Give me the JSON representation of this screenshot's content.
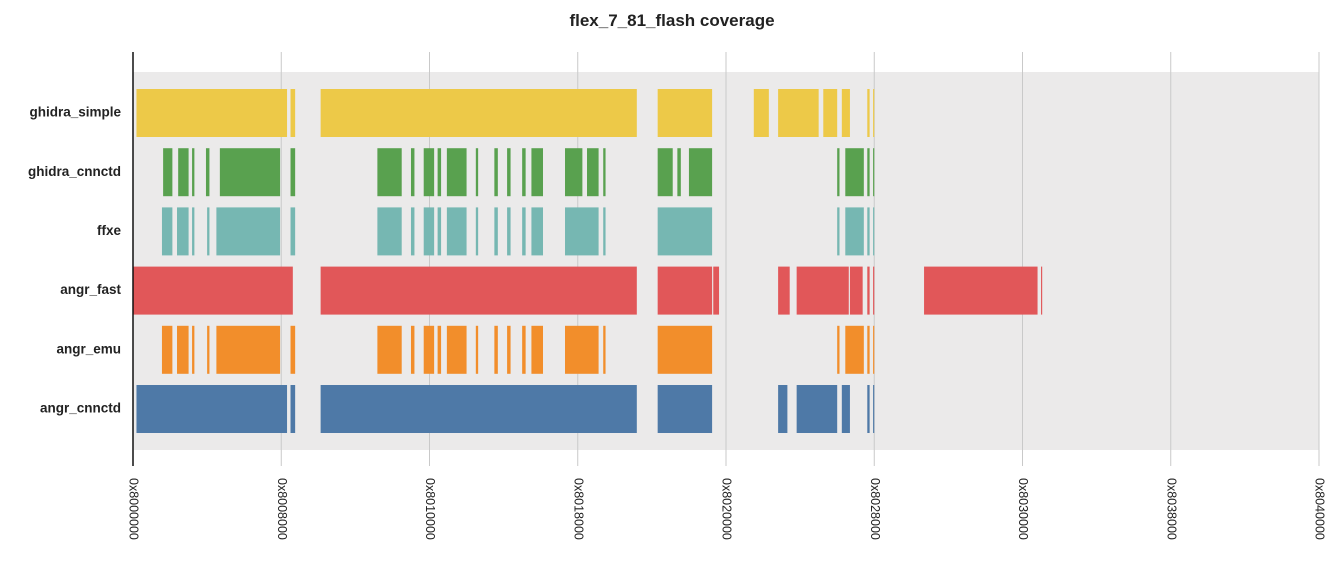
{
  "chart_data": {
    "type": "bar",
    "title": "flex_7_81_flash coverage",
    "xlabel": "",
    "ylabel": "",
    "xlim": [
      "0x8000000",
      "0x8040000"
    ],
    "xticks": [
      "0x8000000",
      "0x8008000",
      "0x8010000",
      "0x8018000",
      "0x8020000",
      "0x8028000",
      "0x8030000",
      "0x8038000",
      "0x8040000"
    ],
    "grid": "vertical",
    "legend": "none",
    "series": [
      {
        "name": "ghidra_simple",
        "color": "#edc948",
        "ranges": [
          [
            "0x8000300",
            "0x8008500"
          ],
          [
            "0x8008800",
            "0x8008C00"
          ],
          [
            "0x800A200",
            "0x801B300"
          ],
          [
            "0x801C500",
            "0x801F400"
          ],
          [
            "0x8021800",
            "0x8022500"
          ],
          [
            "0x8022D00",
            "0x8025000"
          ],
          [
            "0x8025400",
            "0x8026000"
          ],
          [
            "0x8026400",
            "0x8026B00"
          ],
          [
            "0x8027A00",
            "0x8027C00"
          ],
          [
            "0x8027F00",
            "0x8028000"
          ]
        ]
      },
      {
        "name": "ghidra_cnnctd",
        "color": "#59a14f",
        "ranges": [
          [
            "0x8001A00",
            "0x8002200"
          ],
          [
            "0x8002700",
            "0x8003000"
          ],
          [
            "0x8003300",
            "0x8003500"
          ],
          [
            "0x8003F00",
            "0x8004200"
          ],
          [
            "0x8004B00",
            "0x8007F00"
          ],
          [
            "0x8008800",
            "0x8008C00"
          ],
          [
            "0x800D300",
            "0x800E800"
          ],
          [
            "0x800F000",
            "0x800F300"
          ],
          [
            "0x800FB00",
            "0x8010400"
          ],
          [
            "0x8010700",
            "0x8010A00"
          ],
          [
            "0x8010F00",
            "0x8012000"
          ],
          [
            "0x8012800",
            "0x8012A00"
          ],
          [
            "0x8013800",
            "0x8013B00"
          ],
          [
            "0x8014300",
            "0x8014600"
          ],
          [
            "0x8015000",
            "0x8015300"
          ],
          [
            "0x8015800",
            "0x8016200"
          ],
          [
            "0x8017500",
            "0x8018400"
          ],
          [
            "0x8018800",
            "0x8019200"
          ],
          [
            "0x8019600",
            "0x8019800"
          ],
          [
            "0x801C500",
            "0x801D200"
          ],
          [
            "0x801D600",
            "0x801D900"
          ],
          [
            "0x801E000",
            "0x801F400"
          ],
          [
            "0x8026000",
            "0x8026200"
          ],
          [
            "0x8026700",
            "0x8027700"
          ],
          [
            "0x8027A00",
            "0x8027C00"
          ],
          [
            "0x8027F00",
            "0x8028000"
          ]
        ]
      },
      {
        "name": "ffxe",
        "color": "#76b7b2",
        "ranges": [
          [
            "0x8001900",
            "0x8002200"
          ],
          [
            "0x8002600",
            "0x8003000"
          ],
          [
            "0x8003300",
            "0x8003500"
          ],
          [
            "0x8004000",
            "0x8004200"
          ],
          [
            "0x8004800",
            "0x8007F00"
          ],
          [
            "0x8008800",
            "0x8008C00"
          ],
          [
            "0x800D300",
            "0x800E800"
          ],
          [
            "0x800F000",
            "0x800F300"
          ],
          [
            "0x800FB00",
            "0x8010400"
          ],
          [
            "0x8010700",
            "0x8010A00"
          ],
          [
            "0x8010F00",
            "0x8012000"
          ],
          [
            "0x8012800",
            "0x8012A00"
          ],
          [
            "0x8013800",
            "0x8013B00"
          ],
          [
            "0x8014300",
            "0x8014600"
          ],
          [
            "0x8015000",
            "0x8015300"
          ],
          [
            "0x8015800",
            "0x8016200"
          ],
          [
            "0x8017500",
            "0x8019200"
          ],
          [
            "0x8019600",
            "0x8019800"
          ],
          [
            "0x801C500",
            "0x801F400"
          ],
          [
            "0x8026000",
            "0x8026200"
          ],
          [
            "0x8026700",
            "0x8027700"
          ],
          [
            "0x8027A00",
            "0x8027C00"
          ],
          [
            "0x8027F00",
            "0x8028000"
          ]
        ]
      },
      {
        "name": "angr_fast",
        "color": "#e15759",
        "ranges": [
          [
            "0x8000000",
            "0x8008A00"
          ],
          [
            "0x800A200",
            "0x801B300"
          ],
          [
            "0x801C500",
            "0x801F400"
          ],
          [
            "0x801F500",
            "0x801FA00"
          ],
          [
            "0x8022D00",
            "0x8023700"
          ],
          [
            "0x8023D00",
            "0x8026A00"
          ],
          [
            "0x8026B00",
            "0x8027600"
          ],
          [
            "0x8027A00",
            "0x8027C00"
          ],
          [
            "0x8027F00",
            "0x8028000"
          ],
          [
            "0x802AB00",
            "0x8030D00"
          ],
          [
            "0x8031000",
            "0x8031100"
          ]
        ]
      },
      {
        "name": "angr_emu",
        "color": "#f28e2b",
        "ranges": [
          [
            "0x8001900",
            "0x8002200"
          ],
          [
            "0x8002600",
            "0x8003000"
          ],
          [
            "0x8003300",
            "0x8003500"
          ],
          [
            "0x8004000",
            "0x8004200"
          ],
          [
            "0x8004800",
            "0x8007F00"
          ],
          [
            "0x8008800",
            "0x8008C00"
          ],
          [
            "0x800D300",
            "0x800E800"
          ],
          [
            "0x800F000",
            "0x800F300"
          ],
          [
            "0x800FB00",
            "0x8010400"
          ],
          [
            "0x8010700",
            "0x8010A00"
          ],
          [
            "0x8010F00",
            "0x8012000"
          ],
          [
            "0x8012800",
            "0x8012A00"
          ],
          [
            "0x8013800",
            "0x8013B00"
          ],
          [
            "0x8014300",
            "0x8014600"
          ],
          [
            "0x8015000",
            "0x8015300"
          ],
          [
            "0x8015800",
            "0x8016200"
          ],
          [
            "0x8017500",
            "0x8019200"
          ],
          [
            "0x8019600",
            "0x8019800"
          ],
          [
            "0x801C500",
            "0x801F400"
          ],
          [
            "0x8026000",
            "0x8026200"
          ],
          [
            "0x8026700",
            "0x8027700"
          ],
          [
            "0x8027A00",
            "0x8027C00"
          ],
          [
            "0x8027F00",
            "0x8028000"
          ]
        ]
      },
      {
        "name": "angr_cnnctd",
        "color": "#4e79a7",
        "ranges": [
          [
            "0x8000300",
            "0x8008500"
          ],
          [
            "0x8008800",
            "0x8008C00"
          ],
          [
            "0x800A200",
            "0x801B300"
          ],
          [
            "0x801C500",
            "0x801F400"
          ],
          [
            "0x8022D00",
            "0x8023500"
          ],
          [
            "0x8023D00",
            "0x8026000"
          ],
          [
            "0x8026400",
            "0x8026B00"
          ],
          [
            "0x8027A00",
            "0x8027C00"
          ],
          [
            "0x8027F00",
            "0x8028000"
          ]
        ]
      }
    ]
  }
}
